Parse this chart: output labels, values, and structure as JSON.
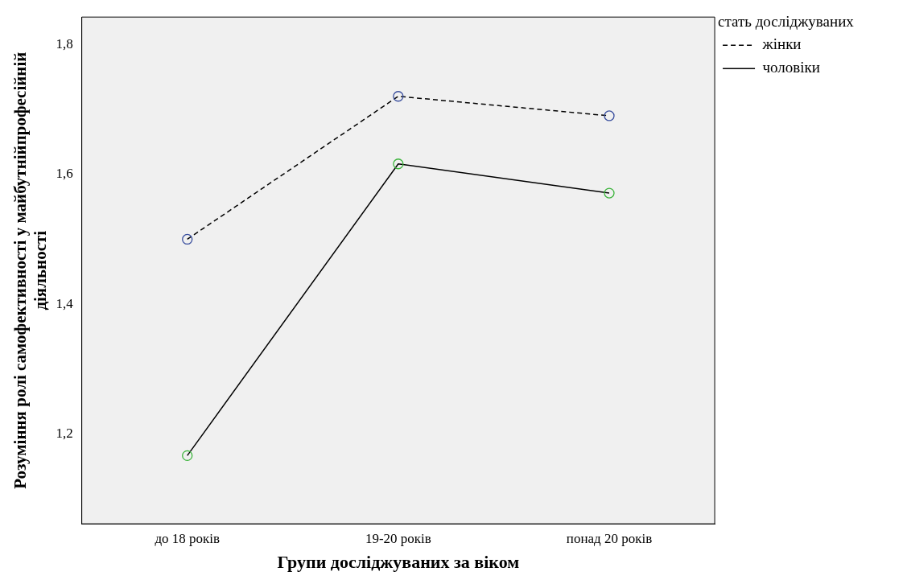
{
  "chart_data": {
    "type": "line",
    "xlabel": "Групи досліджуваних за віком",
    "ylabel": "Розуміння ролі самофективності у майбутнійпрофесійній діяльності",
    "legend_title": "стать досліджуваних",
    "categories": [
      "до 18 років",
      "19-20 років",
      "понад 20 років"
    ],
    "series": [
      {
        "name": "жінки",
        "color": "#000000",
        "colors": [
          "#3a4f9e",
          "#3a4f9e",
          "#3a4f9e"
        ],
        "line_style": "dashed",
        "values": [
          1.5,
          1.72,
          1.69
        ]
      },
      {
        "name": "чоловіки",
        "color": "#000000",
        "colors": [
          "#3cb43c",
          "#3cb43c",
          "#3cb43c"
        ],
        "line_style": "solid",
        "values": [
          1.167,
          1.616,
          1.571
        ]
      }
    ],
    "ylim": [
      1.062,
      1.842
    ],
    "yticks": [
      {
        "value": 1.2,
        "label": "1,2"
      },
      {
        "value": 1.4,
        "label": "1,4"
      },
      {
        "value": 1.6,
        "label": "1,6"
      },
      {
        "value": 1.8,
        "label": "1,8"
      }
    ],
    "marker": "circle",
    "grid": false,
    "legend": "top right"
  }
}
